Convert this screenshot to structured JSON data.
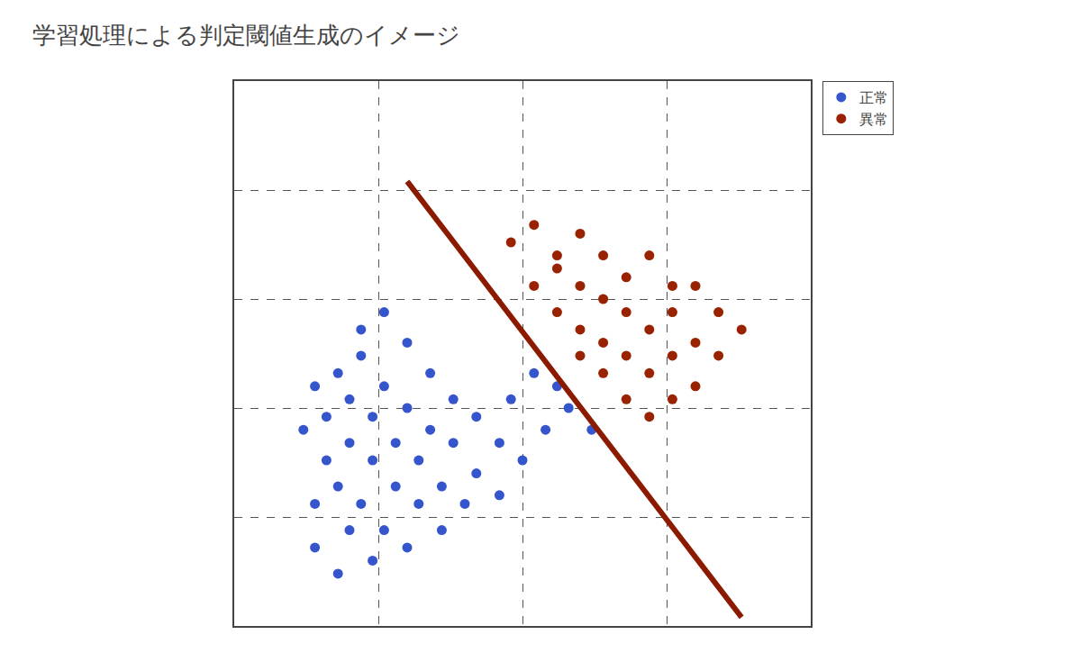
{
  "chart_data": {
    "type": "scatter",
    "title": "学習処理による判定閾値生成のイメージ",
    "series": [
      {
        "name": "正常",
        "color": "#3555CC",
        "marker": "circle",
        "x": [
          0.14,
          0.18,
          0.2,
          0.24,
          0.14,
          0.18,
          0.22,
          0.26,
          0.3,
          0.16,
          0.2,
          0.24,
          0.28,
          0.32,
          0.36,
          0.12,
          0.16,
          0.2,
          0.24,
          0.28,
          0.32,
          0.36,
          0.4,
          0.14,
          0.18,
          0.22,
          0.26,
          0.3,
          0.34,
          0.38,
          0.42,
          0.46,
          0.22,
          0.26,
          0.3,
          0.34,
          0.38,
          0.42,
          0.46,
          0.5,
          0.54,
          0.58,
          0.62,
          0.48,
          0.52,
          0.56
        ],
        "values": [
          0.18,
          0.12,
          0.22,
          0.15,
          0.28,
          0.32,
          0.28,
          0.22,
          0.18,
          0.38,
          0.42,
          0.38,
          0.32,
          0.28,
          0.22,
          0.45,
          0.48,
          0.52,
          0.48,
          0.42,
          0.38,
          0.32,
          0.28,
          0.55,
          0.58,
          0.62,
          0.55,
          0.5,
          0.45,
          0.42,
          0.35,
          0.3,
          0.68,
          0.72,
          0.65,
          0.58,
          0.52,
          0.48,
          0.42,
          0.38,
          0.45,
          0.5,
          0.45,
          0.52,
          0.58,
          0.55
        ]
      },
      {
        "name": "異常",
        "color": "#992200",
        "marker": "circle",
        "x": [
          0.48,
          0.52,
          0.56,
          0.6,
          0.52,
          0.56,
          0.6,
          0.64,
          0.56,
          0.6,
          0.64,
          0.68,
          0.72,
          0.76,
          0.6,
          0.64,
          0.68,
          0.72,
          0.76,
          0.8,
          0.84,
          0.64,
          0.68,
          0.72,
          0.76,
          0.8,
          0.84,
          0.88,
          0.68,
          0.72,
          0.76,
          0.8
        ],
        "values": [
          0.88,
          0.92,
          0.85,
          0.9,
          0.78,
          0.82,
          0.78,
          0.85,
          0.72,
          0.68,
          0.75,
          0.8,
          0.85,
          0.78,
          0.62,
          0.65,
          0.72,
          0.68,
          0.72,
          0.78,
          0.72,
          0.58,
          0.62,
          0.58,
          0.62,
          0.65,
          0.62,
          0.68,
          0.52,
          0.48,
          0.52,
          0.55
        ]
      },
      {
        "type": "line",
        "color": "#8B1A00",
        "line_style": "solid",
        "x": [
          0.3,
          0.88
        ],
        "values": [
          1.02,
          0.02
        ]
      }
    ],
    "xlim": [
      0.0,
      1.0
    ],
    "ylim": [
      0.0,
      1.25
    ],
    "xticks": [
      0.25,
      0.5,
      0.75
    ],
    "yticks": [
      0.25,
      0.5,
      0.75,
      1.0,
      1.25
    ],
    "grid": true,
    "tick_labels": false,
    "legend": "top right"
  }
}
